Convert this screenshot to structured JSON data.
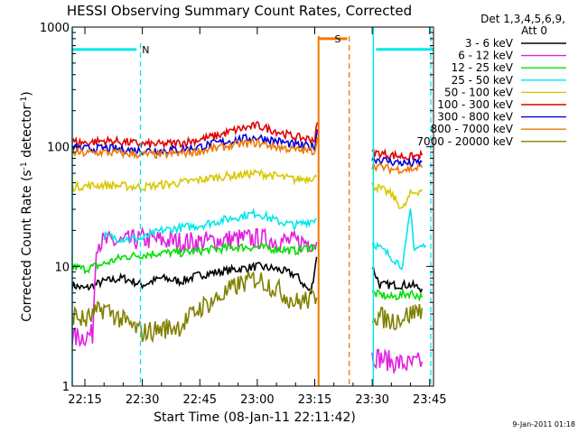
{
  "chart_data": {
    "type": "line",
    "title": "HESSI Observing Summary Count Rates, Corrected",
    "xlabel": "Start Time (08-Jan-11 22:11:42)",
    "ylabel": "Corrected Count Rate (s",
    "ylabel_sup1": "-1",
    "ylabel_mid": " detector",
    "ylabel_sup2": "-1",
    "ylabel_end": ")",
    "y_scale": "log",
    "ylim": [
      1,
      1000
    ],
    "x_range_min": [
      1331.7,
      1426
    ],
    "x_ticks": [
      {
        "min": 1335,
        "label": "22:15"
      },
      {
        "min": 1350,
        "label": "22:30"
      },
      {
        "min": 1365,
        "label": "22:45"
      },
      {
        "min": 1380,
        "label": "23:00"
      },
      {
        "min": 1395,
        "label": "23:15"
      },
      {
        "min": 1410,
        "label": "23:30"
      },
      {
        "min": 1425,
        "label": "23:45"
      }
    ],
    "y_ticks": [
      {
        "v": 1,
        "label": "1"
      },
      {
        "v": 10,
        "label": "10"
      },
      {
        "v": 100,
        "label": "100"
      },
      {
        "v": 1000,
        "label": "1000"
      }
    ],
    "legend_header": [
      "Det 1,3,4,5,6,9,",
      "Att 0"
    ],
    "legend_position": "right",
    "timestamp": "9-Jan-2011 01:18",
    "gaps": [
      [
        1396,
        1410
      ]
    ],
    "series": [
      {
        "name": "3 - 6 keV",
        "color": "#000000",
        "points": [
          [
            1331.7,
            7.0
          ],
          [
            1335,
            6.5
          ],
          [
            1340,
            7.5
          ],
          [
            1345,
            8.0
          ],
          [
            1350,
            7.0
          ],
          [
            1355,
            8.0
          ],
          [
            1360,
            7.5
          ],
          [
            1365,
            8.5
          ],
          [
            1370,
            9.0
          ],
          [
            1375,
            9.5
          ],
          [
            1380,
            10.0
          ],
          [
            1385,
            9.5
          ],
          [
            1390,
            8.5
          ],
          [
            1394,
            6.0
          ],
          [
            1395.5,
            12.0
          ],
          [
            1410,
            10.0
          ],
          [
            1412,
            7.0
          ],
          [
            1414,
            7.0
          ],
          [
            1420,
            7.0
          ],
          [
            1423,
            6.5
          ]
        ]
      },
      {
        "name": "6 - 12 keV",
        "color": "#e020e0",
        "points": [
          [
            1331.7,
            2.5
          ],
          [
            1337,
            2.7
          ],
          [
            1338,
            16.0
          ],
          [
            1345,
            16.0
          ],
          [
            1350,
            17.0
          ],
          [
            1355,
            16.5
          ],
          [
            1360,
            16.0
          ],
          [
            1365,
            16.0
          ],
          [
            1370,
            16.5
          ],
          [
            1375,
            17.0
          ],
          [
            1380,
            17.0
          ],
          [
            1385,
            16.5
          ],
          [
            1390,
            16.0
          ],
          [
            1395.5,
            16.0
          ],
          [
            1410,
            1.8
          ],
          [
            1415,
            1.6
          ],
          [
            1420,
            1.5
          ],
          [
            1423,
            1.6
          ]
        ]
      },
      {
        "name": "12 - 25 keV",
        "color": "#00e000",
        "points": [
          [
            1331.7,
            10.0
          ],
          [
            1335,
            9.5
          ],
          [
            1340,
            10.5
          ],
          [
            1345,
            12.0
          ],
          [
            1350,
            12.5
          ],
          [
            1355,
            13.0
          ],
          [
            1360,
            13.0
          ],
          [
            1365,
            13.5
          ],
          [
            1370,
            14.0
          ],
          [
            1375,
            14.5
          ],
          [
            1380,
            14.5
          ],
          [
            1385,
            14.0
          ],
          [
            1390,
            13.5
          ],
          [
            1395.5,
            15.0
          ],
          [
            1410,
            6.0
          ],
          [
            1415,
            5.5
          ],
          [
            1420,
            6.0
          ],
          [
            1423,
            5.5
          ]
        ]
      },
      {
        "name": "25 - 50 keV",
        "color": "#00e8e8",
        "points": [
          [
            1331.7,
            650
          ],
          [
            1339.5,
            650
          ],
          [
            1340,
            18.0
          ],
          [
            1345,
            17.0
          ],
          [
            1350,
            17.0
          ],
          [
            1355,
            20.0
          ],
          [
            1360,
            21.0
          ],
          [
            1365,
            22.0
          ],
          [
            1370,
            24.0
          ],
          [
            1375,
            26.0
          ],
          [
            1380,
            28.0
          ],
          [
            1385,
            24.0
          ],
          [
            1390,
            22.0
          ],
          [
            1395.5,
            25.0
          ],
          [
            1410,
            16.0
          ],
          [
            1415,
            12.0
          ],
          [
            1418,
            10.0
          ],
          [
            1420,
            30.0
          ],
          [
            1421,
            14.0
          ],
          [
            1424,
            15.0
          ],
          [
            1411,
            650
          ],
          [
            1426,
            650
          ]
        ]
      },
      {
        "name": "50 - 100 keV",
        "color": "#d8c800",
        "points": [
          [
            1331.7,
            46.0
          ],
          [
            1335,
            47.0
          ],
          [
            1340,
            48.0
          ],
          [
            1345,
            47.0
          ],
          [
            1350,
            46.0
          ],
          [
            1355,
            48.0
          ],
          [
            1360,
            50.0
          ],
          [
            1365,
            53.0
          ],
          [
            1370,
            56.0
          ],
          [
            1375,
            58.0
          ],
          [
            1380,
            60.0
          ],
          [
            1385,
            57.0
          ],
          [
            1390,
            53.0
          ],
          [
            1395.5,
            56.0
          ],
          [
            1410,
            48.0
          ],
          [
            1415,
            40.0
          ],
          [
            1418,
            30.0
          ],
          [
            1420,
            40.0
          ],
          [
            1423,
            44.0
          ]
        ]
      },
      {
        "name": "100 - 300 keV",
        "color": "#e00000",
        "points": [
          [
            1331.7,
            110
          ],
          [
            1335,
            108
          ],
          [
            1340,
            112
          ],
          [
            1345,
            110
          ],
          [
            1350,
            105
          ],
          [
            1355,
            105
          ],
          [
            1360,
            108
          ],
          [
            1365,
            115
          ],
          [
            1370,
            125
          ],
          [
            1375,
            140
          ],
          [
            1380,
            150
          ],
          [
            1385,
            135
          ],
          [
            1390,
            120
          ],
          [
            1395,
            115
          ],
          [
            1395.7,
            160
          ],
          [
            1410,
            90
          ],
          [
            1415,
            85
          ],
          [
            1420,
            82
          ],
          [
            1423,
            85
          ]
        ]
      },
      {
        "name": "300 - 800 keV",
        "color": "#0000e0",
        "points": [
          [
            1331.7,
            98
          ],
          [
            1335,
            96
          ],
          [
            1340,
            97
          ],
          [
            1345,
            95
          ],
          [
            1350,
            93
          ],
          [
            1355,
            93
          ],
          [
            1360,
            95
          ],
          [
            1365,
            100
          ],
          [
            1370,
            108
          ],
          [
            1375,
            115
          ],
          [
            1380,
            120
          ],
          [
            1385,
            112
          ],
          [
            1390,
            103
          ],
          [
            1395,
            100
          ],
          [
            1395.7,
            140
          ],
          [
            1410,
            80
          ],
          [
            1415,
            75
          ],
          [
            1420,
            72
          ],
          [
            1423,
            75
          ]
        ]
      },
      {
        "name": "800 - 7000 keV",
        "color": "#f07800",
        "points": [
          [
            1331.7,
            650
          ],
          [
            1331.8,
            90
          ],
          [
            1335,
            88
          ],
          [
            1340,
            90
          ],
          [
            1345,
            88
          ],
          [
            1350,
            86
          ],
          [
            1355,
            86
          ],
          [
            1360,
            88
          ],
          [
            1365,
            92
          ],
          [
            1370,
            98
          ],
          [
            1375,
            105
          ],
          [
            1380,
            108
          ],
          [
            1385,
            100
          ],
          [
            1390,
            94
          ],
          [
            1395,
            92
          ],
          [
            1395.7,
            120
          ],
          [
            1410,
            70
          ],
          [
            1415,
            65
          ],
          [
            1420,
            65
          ],
          [
            1423,
            67
          ]
        ]
      },
      {
        "name": "7000 - 20000 keV",
        "color": "#808000",
        "points": [
          [
            1331.7,
            4.0
          ],
          [
            1335,
            3.5
          ],
          [
            1340,
            4.5
          ],
          [
            1345,
            3.5
          ],
          [
            1350,
            2.8
          ],
          [
            1355,
            3.0
          ],
          [
            1360,
            3.2
          ],
          [
            1365,
            4.5
          ],
          [
            1370,
            5.5
          ],
          [
            1375,
            7.0
          ],
          [
            1380,
            8.0
          ],
          [
            1385,
            6.5
          ],
          [
            1390,
            5.0
          ],
          [
            1395.5,
            5.5
          ],
          [
            1410,
            4.0
          ],
          [
            1415,
            3.5
          ],
          [
            1420,
            4.0
          ],
          [
            1423,
            4.5
          ]
        ]
      }
    ],
    "markers": [
      {
        "label": "N",
        "color": "#00e8e8",
        "x_start": 1331.7,
        "x_end": 1348.5,
        "level": 650
      },
      {
        "label": "S",
        "color": "#f07800",
        "x_start": 1396,
        "x_end": 1403.5,
        "level": 800
      }
    ],
    "saa_line_colors": {
      "cyan": "#00e8e8",
      "orange": "#f07800"
    }
  }
}
